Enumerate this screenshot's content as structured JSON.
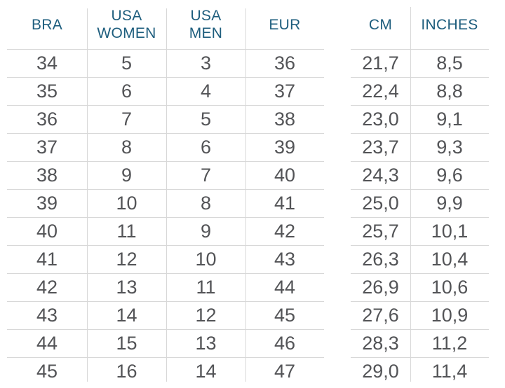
{
  "colors": {
    "header_text": "#1d5d7d",
    "body_text": "#535457",
    "grid_line": "#d8d8d8",
    "background": "#ffffff"
  },
  "chart_data": [
    {
      "type": "table",
      "columns": [
        "BRA",
        "USA\nWOMEN",
        "USA\nMEN",
        "EUR"
      ],
      "rows": [
        [
          "34",
          "5",
          "3",
          "36"
        ],
        [
          "35",
          "6",
          "4",
          "37"
        ],
        [
          "36",
          "7",
          "5",
          "38"
        ],
        [
          "37",
          "8",
          "6",
          "39"
        ],
        [
          "38",
          "9",
          "7",
          "40"
        ],
        [
          "39",
          "10",
          "8",
          "41"
        ],
        [
          "40",
          "11",
          "9",
          "42"
        ],
        [
          "41",
          "12",
          "10",
          "43"
        ],
        [
          "42",
          "13",
          "11",
          "44"
        ],
        [
          "43",
          "14",
          "12",
          "45"
        ],
        [
          "44",
          "15",
          "13",
          "46"
        ],
        [
          "45",
          "16",
          "14",
          "47"
        ]
      ]
    },
    {
      "type": "table",
      "columns": [
        "CM",
        "INCHES"
      ],
      "rows": [
        [
          "21,7",
          "8,5"
        ],
        [
          "22,4",
          "8,8"
        ],
        [
          "23,0",
          "9,1"
        ],
        [
          "23,7",
          "9,3"
        ],
        [
          "24,3",
          "9,6"
        ],
        [
          "25,0",
          "9,9"
        ],
        [
          "25,7",
          "10,1"
        ],
        [
          "26,3",
          "10,4"
        ],
        [
          "26,9",
          "10,6"
        ],
        [
          "27,6",
          "10,9"
        ],
        [
          "28,3",
          "11,2"
        ],
        [
          "29,0",
          "11,4"
        ]
      ]
    }
  ]
}
